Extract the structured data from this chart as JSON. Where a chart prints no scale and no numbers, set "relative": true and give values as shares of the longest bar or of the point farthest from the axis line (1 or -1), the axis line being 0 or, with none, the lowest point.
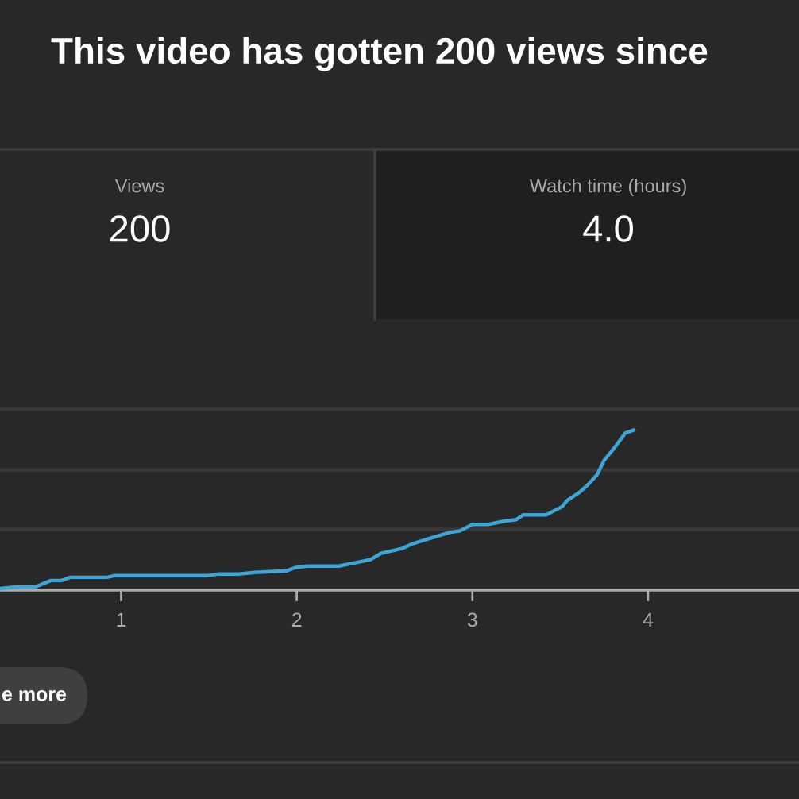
{
  "chart_data": [
    {
      "type": "other",
      "title": "This video has gotten 200 views since",
      "annotations": [
        "Views",
        "200"
      ]
    },
    {
      "type": "other",
      "annotations": [
        "Watch time (hours)",
        "4.0"
      ]
    },
    {
      "type": "line",
      "relative": true,
      "color": "#3ea6d6",
      "tick_labels": "x",
      "xlim": [
        0.31,
        4.86
      ],
      "xticks": [
        1,
        2,
        3,
        4
      ],
      "ref_lines": [
        {
          "axis": "y",
          "value": 0.38,
          "color": "#383838"
        },
        {
          "axis": "y",
          "value": 0.75,
          "color": "#383838"
        },
        {
          "axis": "y",
          "value": 1.13,
          "color": "#383838"
        }
      ],
      "x": [
        0.31,
        0.4,
        0.51,
        0.6,
        0.66,
        0.71,
        0.92,
        0.96,
        1.49,
        1.55,
        1.67,
        1.76,
        1.94,
        1.99,
        2.06,
        2.24,
        2.42,
        2.48,
        2.6,
        2.66,
        2.75,
        2.87,
        2.93,
        3.0,
        3.09,
        3.18,
        3.25,
        3.29,
        3.42,
        3.51,
        3.54,
        3.61,
        3.66,
        3.71,
        3.75,
        3.81,
        3.87,
        3.92
      ],
      "values": [
        0.01,
        0.02,
        0.02,
        0.06,
        0.06,
        0.08,
        0.08,
        0.09,
        0.09,
        0.1,
        0.1,
        0.11,
        0.12,
        0.14,
        0.15,
        0.15,
        0.19,
        0.23,
        0.26,
        0.29,
        0.32,
        0.36,
        0.37,
        0.41,
        0.41,
        0.43,
        0.44,
        0.47,
        0.47,
        0.52,
        0.56,
        0.61,
        0.66,
        0.72,
        0.81,
        0.89,
        0.98,
        1.0
      ],
      "annotations": [
        "e more"
      ]
    }
  ]
}
